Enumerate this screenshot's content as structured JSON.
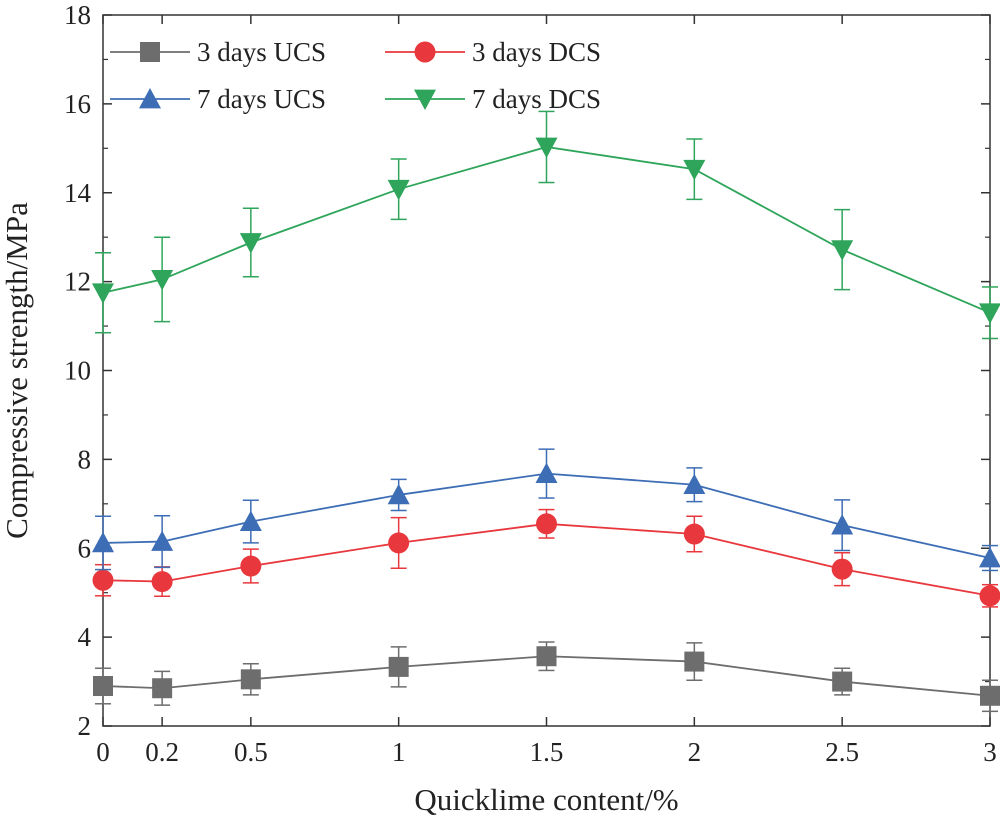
{
  "chart_data": {
    "type": "line",
    "xlabel": "Quicklime content/%",
    "ylabel": "Compressive strength/MPa",
    "xlim": [
      0,
      3
    ],
    "ylim": [
      2,
      18
    ],
    "x": [
      0,
      0.2,
      0.5,
      1,
      1.5,
      2,
      2.5,
      3
    ],
    "x_tick_labels": [
      "0",
      "0.2",
      "0.5",
      "1",
      "1.5",
      "2",
      "2.5",
      "3"
    ],
    "y_ticks": [
      2,
      4,
      6,
      8,
      10,
      12,
      14,
      16,
      18
    ],
    "y_tick_labels": [
      "2",
      "4",
      "6",
      "8",
      "10",
      "12",
      "14",
      "16",
      "18"
    ],
    "legend_position": "top-left",
    "grid": false,
    "series": [
      {
        "name": "3 days UCS",
        "color": "#6d6d6d",
        "marker": "square",
        "values": [
          2.9,
          2.85,
          3.05,
          3.33,
          3.57,
          3.45,
          3.0,
          2.68
        ],
        "errors": [
          0.4,
          0.38,
          0.35,
          0.45,
          0.32,
          0.42,
          0.3,
          0.35
        ]
      },
      {
        "name": "3 days DCS",
        "color": "#e8383d",
        "marker": "circle",
        "values": [
          5.28,
          5.25,
          5.6,
          6.12,
          6.55,
          6.32,
          5.53,
          4.93
        ],
        "errors": [
          0.35,
          0.33,
          0.38,
          0.57,
          0.32,
          0.4,
          0.37,
          0.25
        ]
      },
      {
        "name": "7 days UCS",
        "color": "#3d6db5",
        "marker": "triangle-up",
        "values": [
          6.12,
          6.15,
          6.6,
          7.2,
          7.68,
          7.43,
          6.52,
          5.78
        ],
        "errors": [
          0.6,
          0.58,
          0.48,
          0.35,
          0.55,
          0.38,
          0.57,
          0.28
        ]
      },
      {
        "name": "7 days DCS",
        "color": "#2ea55a",
        "marker": "triangle-down",
        "values": [
          11.75,
          12.05,
          12.88,
          14.08,
          15.03,
          14.53,
          12.72,
          11.3
        ],
        "errors": [
          0.9,
          0.95,
          0.77,
          0.68,
          0.8,
          0.68,
          0.9,
          0.58
        ]
      }
    ]
  }
}
